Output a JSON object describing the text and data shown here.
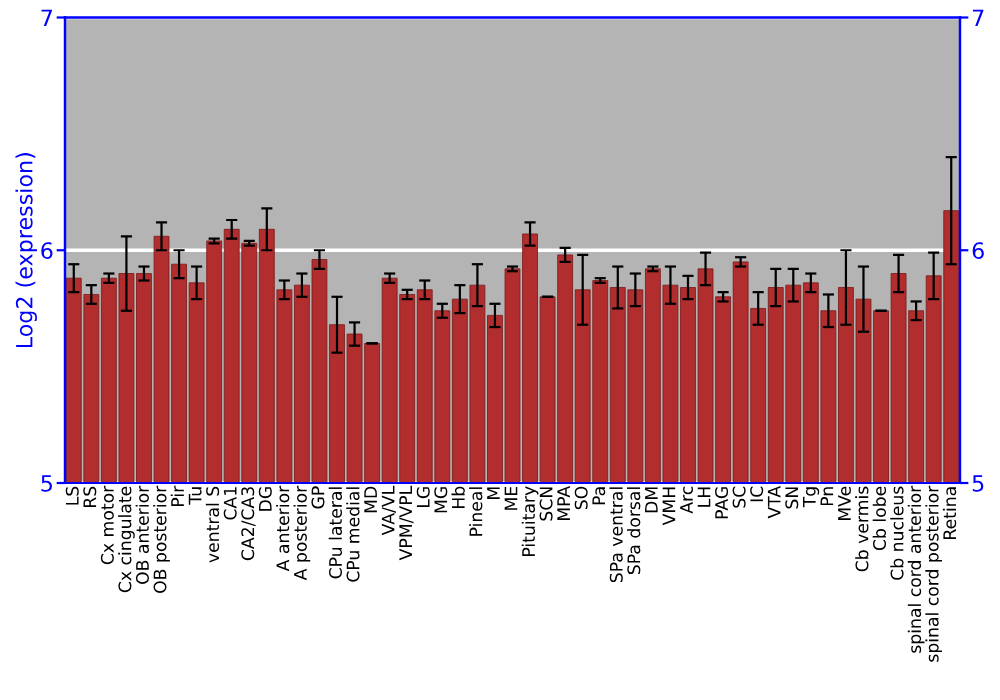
{
  "chart_data": {
    "type": "bar",
    "ylabel": "Log2 (expression)",
    "categories": [
      "LS",
      "RS",
      "Cx motor",
      "Cx cingulate",
      "OB anterior",
      "OB posterior",
      "Pir",
      "Tu",
      "ventral S",
      "CA1",
      "CA2/CA3",
      "DG",
      "A anterior",
      "A posterior",
      "GP",
      "CPu lateral",
      "CPu medial",
      "MD",
      "VA/VL",
      "VPM/VPL",
      "LG",
      "MG",
      "Hb",
      "Pineal",
      "M",
      "ME",
      "Pituitary",
      "SCN",
      "MPA",
      "SO",
      "Pa",
      "SPa ventral",
      "SPa dorsal",
      "DM",
      "VMH",
      "Arc",
      "LH",
      "PAG",
      "SC",
      "IC",
      "VTA",
      "SN",
      "Tg",
      "Pn",
      "MVe",
      "Cb vermis",
      "Cb lobe",
      "Cb nucleus",
      "spinal cord anterior",
      "spinal cord posterior",
      "Retina"
    ],
    "values": [
      5.88,
      5.81,
      5.88,
      5.9,
      5.9,
      6.06,
      5.94,
      5.86,
      6.04,
      6.09,
      6.03,
      6.09,
      5.83,
      5.85,
      5.96,
      5.68,
      5.64,
      5.6,
      5.88,
      5.81,
      5.83,
      5.74,
      5.79,
      5.85,
      5.72,
      5.92,
      6.07,
      5.8,
      5.98,
      5.83,
      5.87,
      5.84,
      5.83,
      5.92,
      5.85,
      5.84,
      5.92,
      5.8,
      5.95,
      5.75,
      5.84,
      5.85,
      5.86,
      5.74,
      5.84,
      5.79,
      5.74,
      5.9,
      5.74,
      5.89,
      6.17
    ],
    "errors": [
      0.06,
      0.04,
      0.02,
      0.16,
      0.03,
      0.06,
      0.06,
      0.07,
      0.01,
      0.04,
      0.01,
      0.09,
      0.04,
      0.05,
      0.04,
      0.12,
      0.05,
      null,
      0.02,
      0.02,
      0.04,
      0.03,
      0.06,
      0.09,
      0.05,
      0.01,
      0.05,
      null,
      0.03,
      0.15,
      0.01,
      0.09,
      0.07,
      0.01,
      0.08,
      0.05,
      0.07,
      0.02,
      0.02,
      0.07,
      0.08,
      0.07,
      0.04,
      0.07,
      0.16,
      0.14,
      null,
      0.08,
      0.04,
      0.1,
      0.23
    ],
    "color": "#b22e2e",
    "ylim": [
      5,
      7
    ],
    "yticks": [
      5,
      6,
      7
    ],
    "y2lim": [
      5,
      7
    ],
    "y2ticks": [
      5,
      6,
      7
    ],
    "grid": "y"
  }
}
